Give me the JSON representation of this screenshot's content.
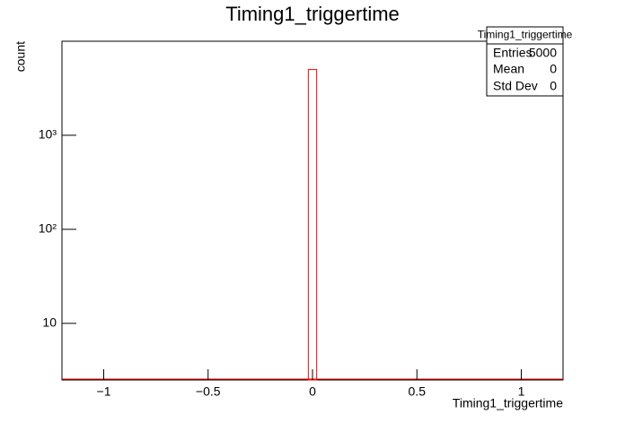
{
  "chart_data": {
    "type": "histogram",
    "title": "Timing1_triggertime",
    "x_label": "Timing1_triggertime",
    "y_label": "count",
    "bins": [
      -0.02,
      0.02
    ],
    "values": [
      5000
    ],
    "color": "#ff0000",
    "xlim": [
      -1.2,
      1.2
    ],
    "xticks": [
      {
        "value": -1,
        "label": "−1"
      },
      {
        "value": -0.5,
        "label": "−0.5"
      },
      0,
      0.5,
      1
    ],
    "ylim": [
      2.5,
      10000
    ],
    "log_y": true,
    "yticks": [
      10,
      {
        "value": 100,
        "label": "10²"
      },
      {
        "value": 1000,
        "label": "10³"
      }
    ],
    "stats": {
      "title": "Timing1_triggertime",
      "rows": [
        [
          "Entries",
          "5000"
        ],
        [
          "Mean",
          "0"
        ],
        [
          "Std Dev",
          "0"
        ]
      ]
    }
  }
}
